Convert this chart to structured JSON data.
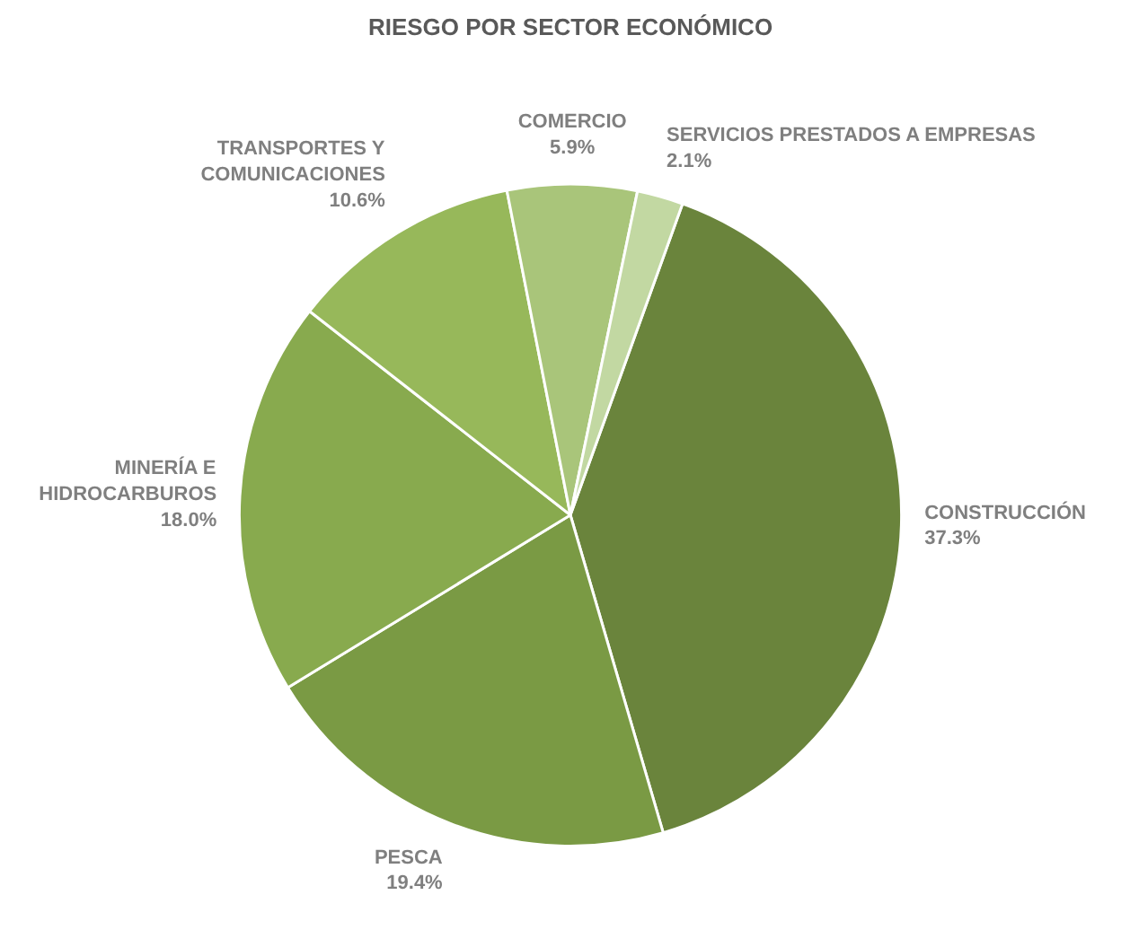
{
  "chart_data": {
    "type": "pie",
    "title": "RIESGO POR SECTOR ECONÓMICO",
    "categories": [
      "CONSTRUCCIÓN",
      "PESCA",
      "MINERÍA E HIDROCARBUROS",
      "TRANSPORTES Y COMUNICACIONES",
      "COMERCIO",
      "SERVICIOS PRESTADOS A EMPRESAS"
    ],
    "values": [
      37.3,
      19.4,
      18.0,
      10.6,
      5.9,
      2.1
    ],
    "colors": [
      "#6a843c",
      "#7a9a44",
      "#88aa4e",
      "#97b85a",
      "#a9c57a",
      "#c2d8a2"
    ],
    "value_labels": [
      "37.3%",
      "19.4%",
      "18.0%",
      "10.6%",
      "5.9%",
      "2.1%"
    ],
    "legend": false
  }
}
